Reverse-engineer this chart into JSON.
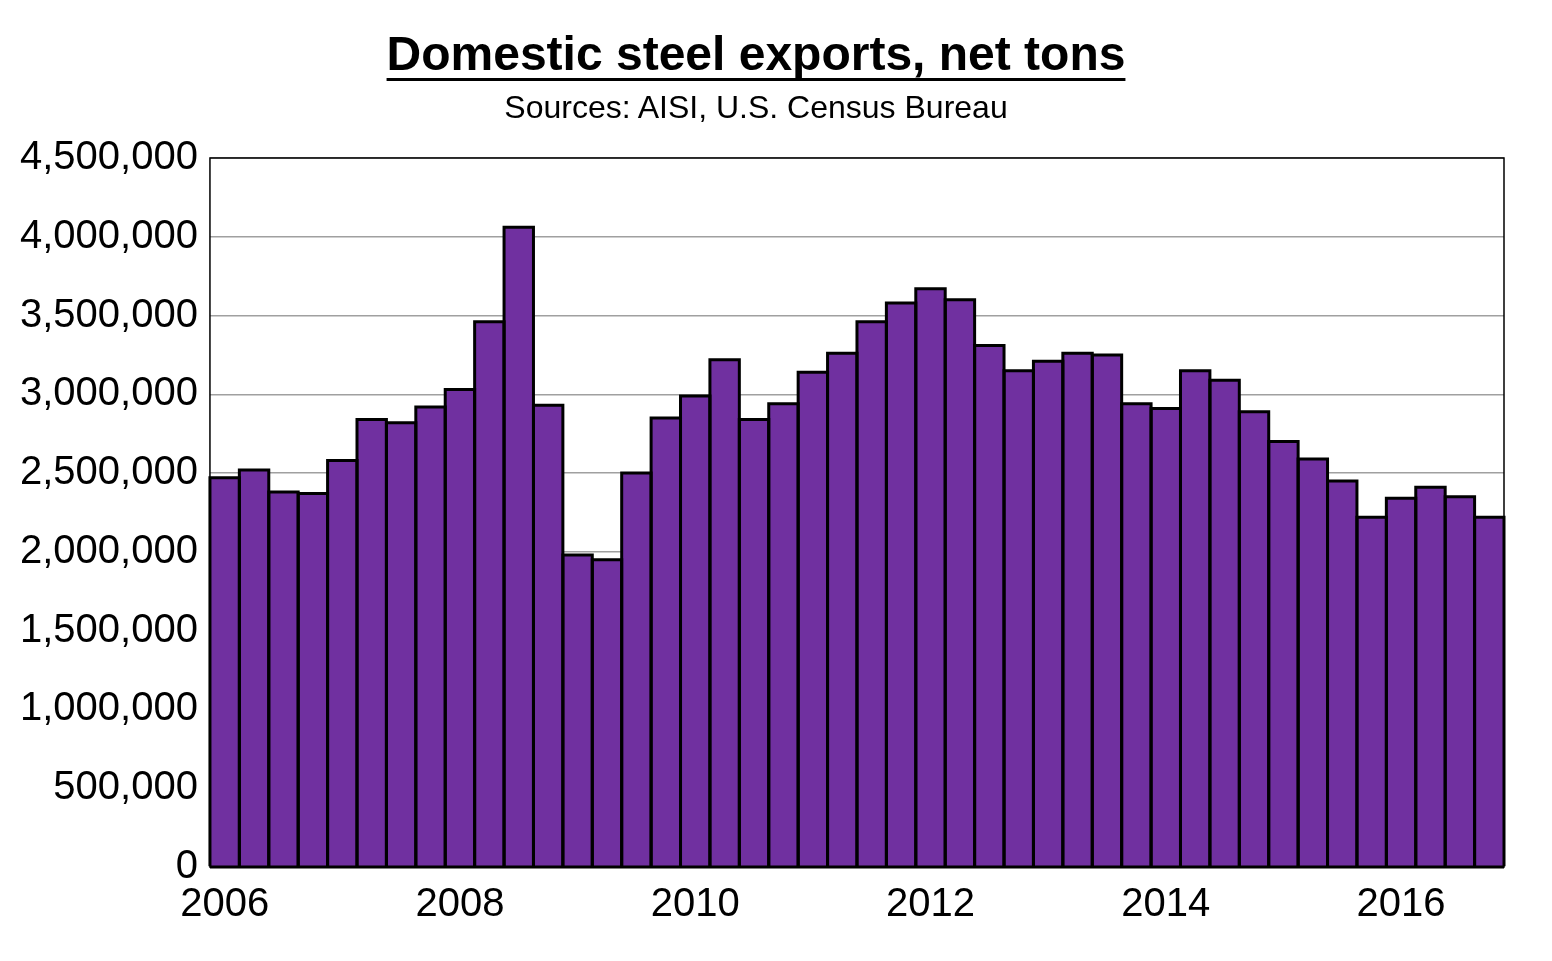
{
  "chart_data": {
    "type": "bar",
    "title": "Domestic steel exports, net tons",
    "subtitle": "Sources: AISI, U.S. Census Bureau",
    "categories": [
      "2006",
      null,
      null,
      null,
      null,
      null,
      null,
      null,
      "2008",
      null,
      null,
      null,
      null,
      null,
      null,
      null,
      "2010",
      null,
      null,
      null,
      null,
      null,
      null,
      null,
      "2012",
      null,
      null,
      null,
      null,
      null,
      null,
      null,
      "2014",
      null,
      null,
      null,
      null,
      null,
      null,
      null,
      "2016",
      null,
      null,
      null
    ],
    "values": [
      2470000,
      2520000,
      2380000,
      2370000,
      2580000,
      2840000,
      2820000,
      2920000,
      3030000,
      3460000,
      4060000,
      2930000,
      1980000,
      1950000,
      2500000,
      2850000,
      2990000,
      3220000,
      2840000,
      2940000,
      3140000,
      3260000,
      3460000,
      3580000,
      3670000,
      3600000,
      3310000,
      3150000,
      3210000,
      3260000,
      3250000,
      2940000,
      2910000,
      3150000,
      3090000,
      2890000,
      2700000,
      2590000,
      2450000,
      2220000,
      2340000,
      2410000,
      2350000,
      2220000
    ],
    "color": "#7030a0",
    "ylim": [
      0,
      4500000
    ],
    "yticks": [
      {
        "value": 0,
        "label": "0"
      },
      {
        "value": 500000,
        "label": "500,000"
      },
      {
        "value": 1000000,
        "label": "1,000,000"
      },
      {
        "value": 1500000,
        "label": "1,500,000"
      },
      {
        "value": 2000000,
        "label": "2,000,000"
      },
      {
        "value": 2500000,
        "label": "2,500,000"
      },
      {
        "value": 3000000,
        "label": "3,000,000"
      },
      {
        "value": 3500000,
        "label": "3,500,000"
      },
      {
        "value": 4000000,
        "label": "4,000,000"
      },
      {
        "value": 4500000,
        "label": "4,500,000"
      }
    ],
    "grid": "y"
  }
}
